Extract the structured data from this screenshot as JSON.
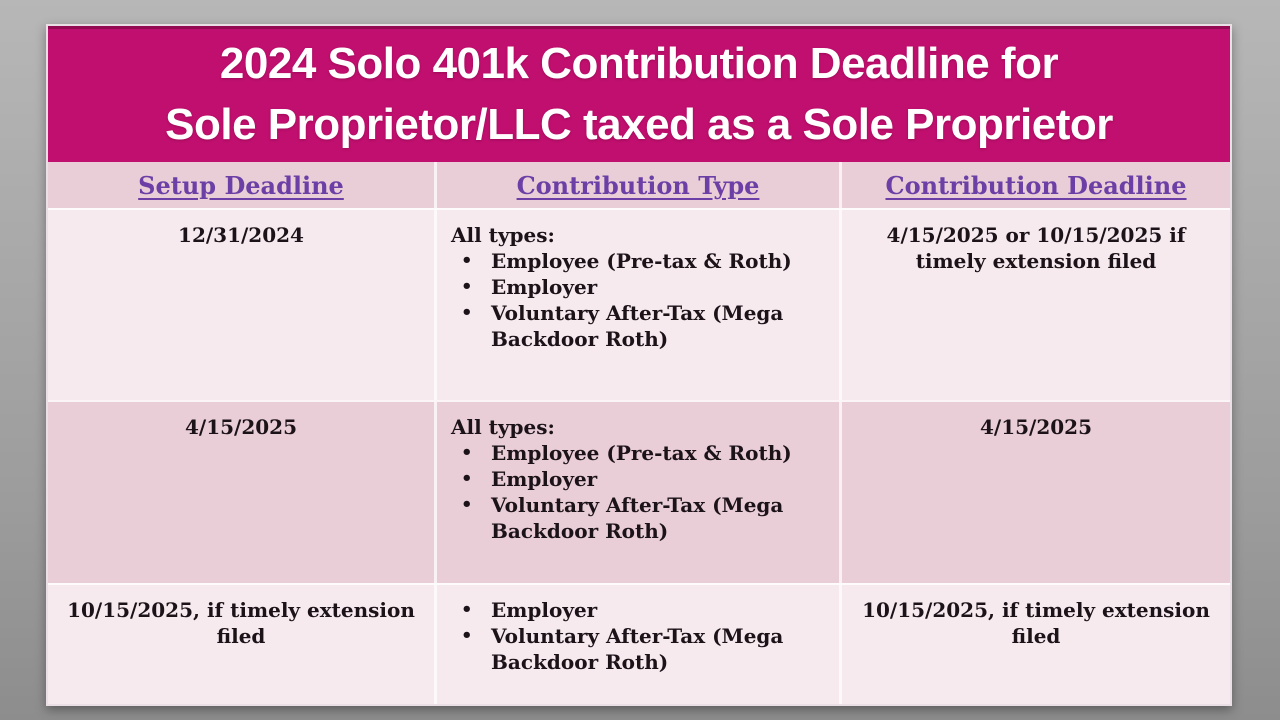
{
  "title": {
    "line1": "2024 Solo 401k Contribution Deadline for",
    "line2": "Sole Proprietor/LLC taxed as a Sole Proprietor"
  },
  "table": {
    "headers": [
      "Setup Deadline",
      "Contribution Type",
      "Contribution Deadline"
    ],
    "rows": [
      {
        "setup": "12/31/2024",
        "type_intro": "All types:",
        "type_items": [
          "Employee (Pre-tax & Roth)",
          "Employer",
          "Voluntary After-Tax (Mega Backdoor Roth)"
        ],
        "deadline": "4/15/2025 or 10/15/2025 if timely extension filed"
      },
      {
        "setup": "4/15/2025",
        "type_intro": "All types:",
        "type_items": [
          "Employee (Pre-tax & Roth)",
          "Employer",
          "Voluntary After-Tax (Mega Backdoor Roth)"
        ],
        "deadline": "4/15/2025"
      },
      {
        "setup": "10/15/2025, if timely extension filed",
        "type_items": [
          "Employer",
          "Voluntary After-Tax (Mega Backdoor Roth)"
        ],
        "deadline": "10/15/2025, if timely extension filed"
      }
    ]
  },
  "colors": {
    "title_background": "#c00f6e",
    "title_text": "#ffffff",
    "header_text": "#6b3fa5",
    "header_background": "#e9cdd7",
    "row_light": "#f6eaef",
    "row_dark": "#e9cdd7",
    "body_text": "#1c1318",
    "outer_background": "#a9a9a9"
  }
}
